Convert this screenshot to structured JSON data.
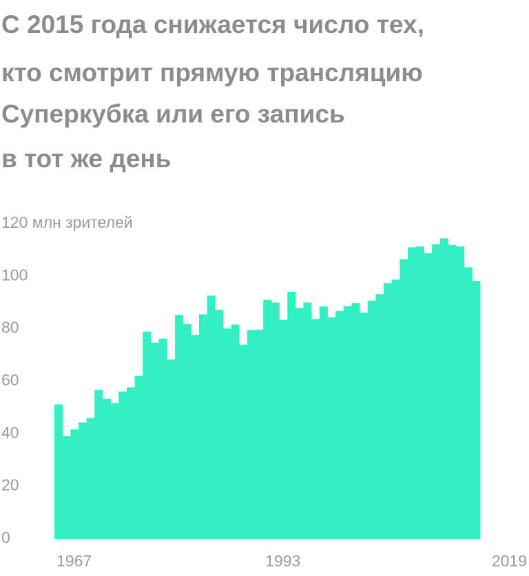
{
  "chart_data": {
    "type": "bar",
    "title": [
      "С 2015 года снижается число тех,",
      "кто смотрит прямую трансляцию",
      "Суперкубка или его запись",
      "в тот же день"
    ],
    "categories": [
      "1967",
      null,
      null,
      null,
      null,
      null,
      null,
      null,
      null,
      null,
      null,
      null,
      null,
      null,
      null,
      null,
      null,
      null,
      null,
      null,
      null,
      null,
      null,
      null,
      null,
      null,
      "1993",
      null,
      null,
      null,
      null,
      null,
      null,
      null,
      null,
      null,
      null,
      null,
      null,
      null,
      null,
      null,
      null,
      null,
      null,
      null,
      null,
      null,
      null,
      null,
      null,
      null,
      "2019"
    ],
    "values": [
      51.2,
      39.1,
      41.7,
      44.3,
      46.0,
      56.6,
      53.3,
      51.7,
      56.1,
      57.7,
      62.1,
      78.9,
      74.7,
      76.2,
      68.3,
      85.2,
      81.8,
      77.6,
      85.5,
      92.6,
      87.2,
      80.1,
      81.6,
      73.9,
      79.5,
      79.6,
      91.0,
      90.0,
      83.4,
      94.1,
      87.9,
      90.0,
      83.7,
      88.5,
      84.3,
      86.8,
      88.6,
      89.8,
      86.1,
      90.7,
      93.2,
      97.4,
      98.7,
      106.5,
      111.0,
      111.3,
      108.7,
      112.2,
      114.4,
      111.9,
      111.3,
      103.4,
      98.2
    ],
    "color": "#33f0c2",
    "ylim": [
      0,
      120
    ],
    "yticks": [
      0,
      20,
      40,
      60,
      80,
      100,
      {
        "value": 120,
        "label": "120 млн зрителей"
      }
    ],
    "grid": false
  }
}
